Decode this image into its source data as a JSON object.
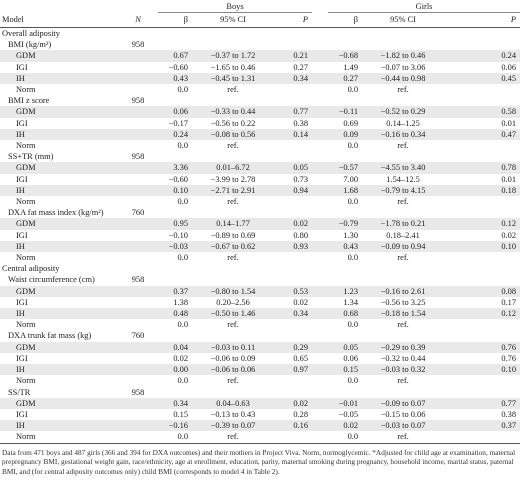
{
  "headers": {
    "model": "Model",
    "n": "N",
    "boys": "Boys",
    "girls": "Girls",
    "beta": "β",
    "ci": "95% CI",
    "p": "P"
  },
  "rows": [
    {
      "type": "section",
      "label": "Overall adiposity"
    },
    {
      "type": "outcome",
      "label": "BMI (kg/m²)",
      "n": "958"
    },
    {
      "type": "data",
      "label": "GDM",
      "b_beta": "0.67",
      "b_ci": "−0.37 to 1.72",
      "b_p": "0.21",
      "g_beta": "−0.68",
      "g_ci": "−1.82 to 0.46",
      "g_p": "0.24"
    },
    {
      "type": "data",
      "label": "IGI",
      "b_beta": "−0.60",
      "b_ci": "−1.65 to 0.46",
      "b_p": "0.27",
      "g_beta": "1.49",
      "g_ci": "−0.07 to 3.06",
      "g_p": "0.06"
    },
    {
      "type": "data",
      "label": "IH",
      "b_beta": "0.43",
      "b_ci": "−0.45 to 1.31",
      "b_p": "0.34",
      "g_beta": "0.27",
      "g_ci": "−0.44 to 0.98",
      "g_p": "0.45"
    },
    {
      "type": "data",
      "label": "Norm",
      "b_beta": "0.0",
      "b_ci": "ref.",
      "b_p": "",
      "g_beta": "0.0",
      "g_ci": "ref.",
      "g_p": ""
    },
    {
      "type": "outcome",
      "label": "BMI z score",
      "n": "958"
    },
    {
      "type": "data",
      "label": "GDM",
      "b_beta": "0.06",
      "b_ci": "−0.33 to 0.44",
      "b_p": "0.77",
      "g_beta": "−0.11",
      "g_ci": "−0.52 to 0.29",
      "g_p": "0.58"
    },
    {
      "type": "data",
      "label": "IGI",
      "b_beta": "−0.17",
      "b_ci": "−0.56 to 0.22",
      "b_p": "0.38",
      "g_beta": "0.69",
      "g_ci": "0.14–1.25",
      "g_p": "0.01"
    },
    {
      "type": "data",
      "label": "IH",
      "b_beta": "0.24",
      "b_ci": "−0.08 to 0.56",
      "b_p": "0.14",
      "g_beta": "0.09",
      "g_ci": "−0.16 to 0.34",
      "g_p": "0.47"
    },
    {
      "type": "data",
      "label": "Norm",
      "b_beta": "0.0",
      "b_ci": "ref.",
      "b_p": "",
      "g_beta": "0.0",
      "g_ci": "ref.",
      "g_p": ""
    },
    {
      "type": "outcome",
      "label": "SS+TR (mm)",
      "n": "958"
    },
    {
      "type": "data",
      "label": "GDM",
      "b_beta": "3.36",
      "b_ci": "0.01–6.72",
      "b_p": "0.05",
      "g_beta": "−0.57",
      "g_ci": "−4.55 to 3.40",
      "g_p": "0.78"
    },
    {
      "type": "data",
      "label": "IGI",
      "b_beta": "−0.60",
      "b_ci": "−3.99 to 2.78",
      "b_p": "0.73",
      "g_beta": "7.00",
      "g_ci": "1.54–12.5",
      "g_p": "0.01"
    },
    {
      "type": "data",
      "label": "IH",
      "b_beta": "0.10",
      "b_ci": "−2.71 to 2.91",
      "b_p": "0.94",
      "g_beta": "1.68",
      "g_ci": "−0.79 to 4.15",
      "g_p": "0.18"
    },
    {
      "type": "data",
      "label": "Norm",
      "b_beta": "0.0",
      "b_ci": "ref.",
      "b_p": "",
      "g_beta": "0.0",
      "g_ci": "ref.",
      "g_p": ""
    },
    {
      "type": "outcome",
      "label": "DXA fat mass index (kg/m²)",
      "n": "760"
    },
    {
      "type": "data",
      "label": "GDM",
      "b_beta": "0.95",
      "b_ci": "0.14–1.77",
      "b_p": "0.02",
      "g_beta": "−0.79",
      "g_ci": "−1.78 to 0.21",
      "g_p": "0.12"
    },
    {
      "type": "data",
      "label": "IGI",
      "b_beta": "−0.10",
      "b_ci": "−0.89 to 0.69",
      "b_p": "0.80",
      "g_beta": "1.30",
      "g_ci": "0.18–2.41",
      "g_p": "0.02"
    },
    {
      "type": "data",
      "label": "IH",
      "b_beta": "−0.03",
      "b_ci": "−0.67 to 0.62",
      "b_p": "0.93",
      "g_beta": "0.43",
      "g_ci": "−0.09 to 0.94",
      "g_p": "0.10"
    },
    {
      "type": "data",
      "label": "Norm",
      "b_beta": "0.0",
      "b_ci": "ref.",
      "b_p": "",
      "g_beta": "0.0",
      "g_ci": "ref.",
      "g_p": ""
    },
    {
      "type": "section",
      "label": "Central adiposity"
    },
    {
      "type": "outcome",
      "label": "Waist circumference (cm)",
      "n": "958"
    },
    {
      "type": "data",
      "label": "GDM",
      "b_beta": "0.37",
      "b_ci": "−0.80 to 1.54",
      "b_p": "0.53",
      "g_beta": "1.23",
      "g_ci": "−0.16 to 2.61",
      "g_p": "0.08"
    },
    {
      "type": "data",
      "label": "IGI",
      "b_beta": "1.38",
      "b_ci": "0.20–2.56",
      "b_p": "0.02",
      "g_beta": "1.34",
      "g_ci": "−0.56 to 3.25",
      "g_p": "0.17"
    },
    {
      "type": "data",
      "label": "IH",
      "b_beta": "0.48",
      "b_ci": "−0.50 to 1.46",
      "b_p": "0.34",
      "g_beta": "0.68",
      "g_ci": "−0.18 to 1.54",
      "g_p": "0.12"
    },
    {
      "type": "data",
      "label": "Norm",
      "b_beta": "0.0",
      "b_ci": "ref.",
      "b_p": "",
      "g_beta": "0.0",
      "g_ci": "ref.",
      "g_p": ""
    },
    {
      "type": "outcome",
      "label": "DXA trunk fat mass (kg)",
      "n": "760"
    },
    {
      "type": "data",
      "label": "GDM",
      "b_beta": "0.04",
      "b_ci": "−0.03 to 0.11",
      "b_p": "0.29",
      "g_beta": "0.05",
      "g_ci": "−0.29 to 0.39",
      "g_p": "0.76"
    },
    {
      "type": "data",
      "label": "IGI",
      "b_beta": "0.02",
      "b_ci": "−0.06 to 0.09",
      "b_p": "0.65",
      "g_beta": "0.06",
      "g_ci": "−0.32 to 0.44",
      "g_p": "0.76"
    },
    {
      "type": "data",
      "label": "IH",
      "b_beta": "0.00",
      "b_ci": "−0.06 to 0.06",
      "b_p": "0.97",
      "g_beta": "0.15",
      "g_ci": "−0.03 to 0.32",
      "g_p": "0.10"
    },
    {
      "type": "data",
      "label": "Norm",
      "b_beta": "0.0",
      "b_ci": "ref.",
      "b_p": "",
      "g_beta": "0.0",
      "g_ci": "ref.",
      "g_p": ""
    },
    {
      "type": "outcome",
      "label": "SS/TR",
      "n": "958"
    },
    {
      "type": "data",
      "label": "GDM",
      "b_beta": "0.34",
      "b_ci": "0.04–0.63",
      "b_p": "0.02",
      "g_beta": "−0.01",
      "g_ci": "−0.09 to 0.07",
      "g_p": "0.77"
    },
    {
      "type": "data",
      "label": "IGI",
      "b_beta": "0.15",
      "b_ci": "−0.13 to 0.43",
      "b_p": "0.28",
      "g_beta": "−0.05",
      "g_ci": "−0.15 to 0.06",
      "g_p": "0.38"
    },
    {
      "type": "data",
      "label": "IH",
      "b_beta": "−0.16",
      "b_ci": "−0.39 to 0.07",
      "b_p": "0.16",
      "g_beta": "0.02",
      "g_ci": "−0.03 to 0.07",
      "g_p": "0.37"
    },
    {
      "type": "data",
      "label": "Norm",
      "b_beta": "0.0",
      "b_ci": "ref.",
      "b_p": "",
      "g_beta": "0.0",
      "g_ci": "ref.",
      "g_p": ""
    }
  ],
  "footnote": "Data from 471 boys and 487 girls (366 and 394 for DXA outcomes) and their mothers in Project Viva. Norm, normoglycemic. *Adjusted for child age at examination, maternal prepregnancy BMI, gestational weight gain, race/ethnicity, age at enrollment, education, parity, maternal smoking during pregnancy, household income, marital status, paternal BMI, and (for central adiposity outcomes only) child BMI (corresponds to model 4 in Table 2)."
}
